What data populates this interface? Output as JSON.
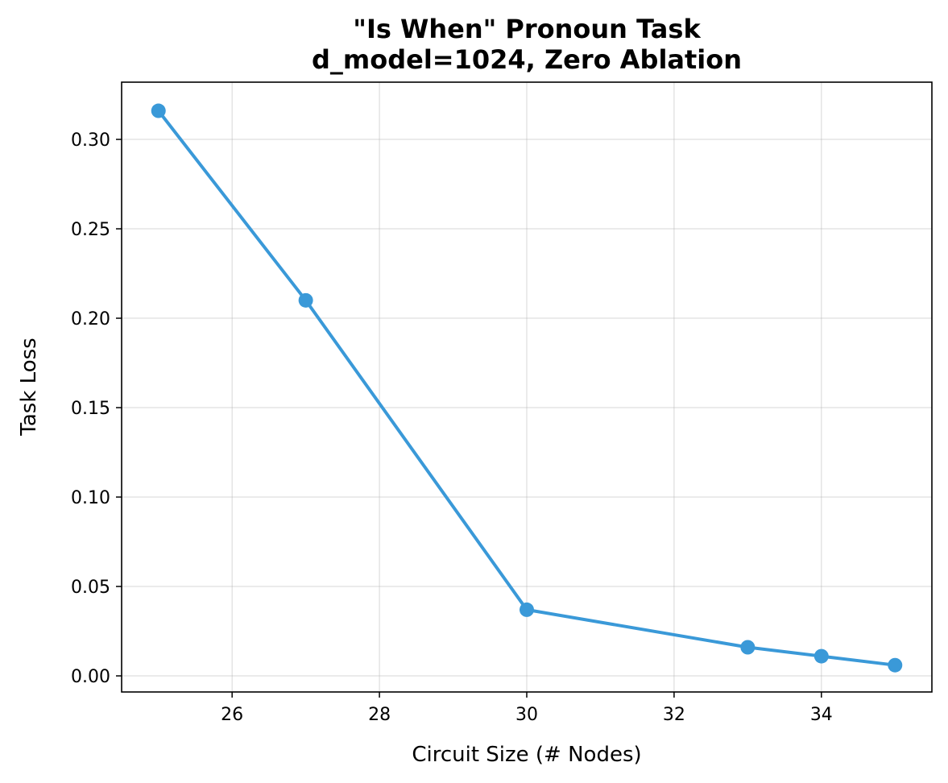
{
  "chart_data": {
    "type": "line",
    "title_line1": "\"Is When\" Pronoun Task",
    "title_line2": "d_model=1024, Zero Ablation",
    "xlabel": "Circuit Size (# Nodes)",
    "ylabel": "Task Loss",
    "xlim": [
      24.5,
      35.5
    ],
    "ylim": [
      -0.009,
      0.332
    ],
    "xticks": [
      26,
      28,
      30,
      32,
      34
    ],
    "xtick_labels": [
      "26",
      "28",
      "30",
      "32",
      "34"
    ],
    "yticks": [
      0.0,
      0.05,
      0.1,
      0.15,
      0.2,
      0.25,
      0.3
    ],
    "ytick_labels": [
      "0.00",
      "0.05",
      "0.10",
      "0.15",
      "0.20",
      "0.25",
      "0.30"
    ],
    "grid": true,
    "series": [
      {
        "x": [
          25,
          27,
          30,
          33,
          34,
          35
        ],
        "y": [
          0.316,
          0.21,
          0.037,
          0.016,
          0.011,
          0.006
        ],
        "color": "#3a99d8",
        "marker": "circle"
      }
    ]
  }
}
